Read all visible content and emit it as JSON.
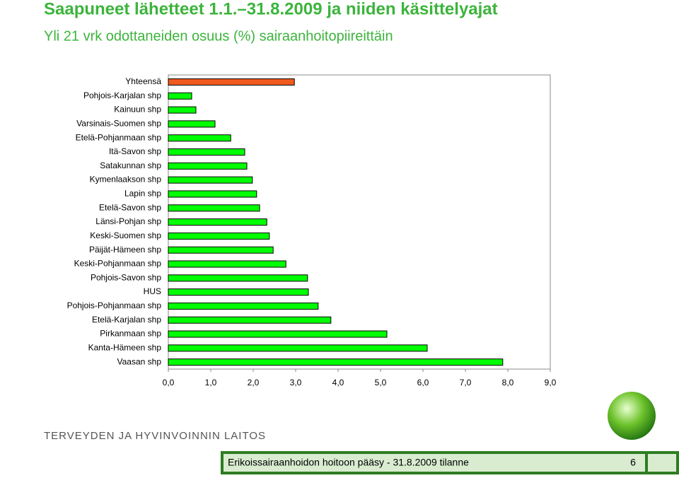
{
  "slide": {
    "title": "Saapuneet lähetteet 1.1.–31.8.2009 ja niiden käsittelyajat",
    "subtitle": "Yli 21 vrk odottaneiden osuus (%) sairaanhoitopiireittäin",
    "organization": "TERVEYDEN JA HYVINVOINNIN LAITOS",
    "footer": "Erikoissairaanhoidon hoitoon pääsy - 31.8.2009 tilanne",
    "page_number": "6"
  },
  "chart_data": {
    "type": "barh",
    "categories": [
      "Yhteensä",
      "Pohjois-Karjalan shp",
      "Kainuun shp",
      "Varsinais-Suomen shp",
      "Etelä-Pohjanmaan shp",
      "Itä-Savon shp",
      "Satakunnan shp",
      "Kymenlaakson shp",
      "Lapin shp",
      "Etelä-Savon shp",
      "Länsi-Pohjan shp",
      "Keski-Suomen shp",
      "Päijät-Hämeen shp",
      "Keski-Pohjanmaan shp",
      "Pohjois-Savon shp",
      "HUS",
      "Pohjois-Pohjanmaan shp",
      "Etelä-Karjalan shp",
      "Pirkanmaan shp",
      "Kanta-Hämeen shp",
      "Vaasan shp"
    ],
    "values": [
      2.97,
      0.55,
      0.65,
      1.1,
      1.47,
      1.8,
      1.85,
      1.98,
      2.08,
      2.15,
      2.32,
      2.38,
      2.47,
      2.77,
      3.28,
      3.3,
      3.53,
      3.83,
      5.15,
      6.1,
      7.88
    ],
    "colors": [
      "#f05a1e",
      "#00ff00",
      "#00ff00",
      "#00ff00",
      "#00ff00",
      "#00ff00",
      "#00ff00",
      "#00ff00",
      "#00ff00",
      "#00ff00",
      "#00ff00",
      "#00ff00",
      "#00ff00",
      "#00ff00",
      "#00ff00",
      "#00ff00",
      "#00ff00",
      "#00ff00",
      "#00ff00",
      "#00ff00",
      "#00ff00"
    ],
    "xlim": [
      0,
      9
    ],
    "xticks": [
      {
        "value": 0,
        "label": "0,0"
      },
      {
        "value": 1,
        "label": "1,0"
      },
      {
        "value": 2,
        "label": "2,0"
      },
      {
        "value": 3,
        "label": "3,0"
      },
      {
        "value": 4,
        "label": "4,0"
      },
      {
        "value": 5,
        "label": "5,0"
      },
      {
        "value": 6,
        "label": "6,0"
      },
      {
        "value": 7,
        "label": "7,0"
      },
      {
        "value": 8,
        "label": "8,0"
      },
      {
        "value": 9,
        "label": "9,0"
      }
    ],
    "grid": false
  }
}
